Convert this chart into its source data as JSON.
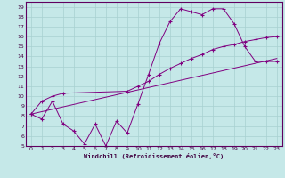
{
  "title": "",
  "xlabel": "Windchill (Refroidissement éolien,°C)",
  "bg_color": "#c5e8e8",
  "grid_color": "#a8d0d0",
  "line_color": "#800080",
  "xlim": [
    -0.5,
    23.5
  ],
  "ylim": [
    5,
    19.5
  ],
  "xticks": [
    0,
    1,
    2,
    3,
    4,
    5,
    6,
    7,
    8,
    9,
    10,
    11,
    12,
    13,
    14,
    15,
    16,
    17,
    18,
    19,
    20,
    21,
    22,
    23
  ],
  "yticks": [
    5,
    6,
    7,
    8,
    9,
    10,
    11,
    12,
    13,
    14,
    15,
    16,
    17,
    18,
    19
  ],
  "line1_x": [
    0,
    1,
    2,
    3,
    4,
    5,
    6,
    7,
    8,
    9,
    10,
    11,
    12,
    13,
    14,
    15,
    16,
    17,
    18,
    19,
    20,
    21,
    22,
    23
  ],
  "line1_y": [
    8.2,
    7.7,
    9.5,
    7.2,
    6.5,
    5.2,
    7.2,
    5.0,
    7.5,
    6.3,
    9.2,
    12.2,
    15.3,
    17.5,
    18.8,
    18.5,
    18.2,
    18.8,
    18.8,
    17.3,
    15.0,
    13.5,
    13.5,
    13.5
  ],
  "line2_x": [
    0,
    1,
    2,
    3,
    9,
    10,
    11,
    12,
    13,
    14,
    15,
    16,
    17,
    18,
    19,
    20,
    21,
    22,
    23
  ],
  "line2_y": [
    8.2,
    9.5,
    10.0,
    10.3,
    10.5,
    11.0,
    11.5,
    12.2,
    12.8,
    13.3,
    13.8,
    14.2,
    14.7,
    15.0,
    15.2,
    15.5,
    15.7,
    15.9,
    16.0
  ],
  "line3_x": [
    0,
    23
  ],
  "line3_y": [
    8.2,
    13.8
  ]
}
